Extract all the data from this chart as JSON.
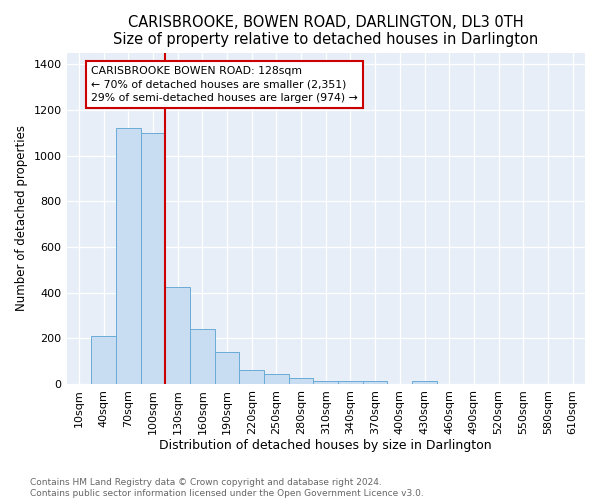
{
  "title": "CARISBROOKE, BOWEN ROAD, DARLINGTON, DL3 0TH",
  "subtitle": "Size of property relative to detached houses in Darlington",
  "xlabel": "Distribution of detached houses by size in Darlington",
  "ylabel": "Number of detached properties",
  "footnote1": "Contains HM Land Registry data © Crown copyright and database right 2024.",
  "footnote2": "Contains public sector information licensed under the Open Government Licence v3.0.",
  "bar_labels": [
    "10sqm",
    "40sqm",
    "70sqm",
    "100sqm",
    "130sqm",
    "160sqm",
    "190sqm",
    "220sqm",
    "250sqm",
    "280sqm",
    "310sqm",
    "340sqm",
    "370sqm",
    "400sqm",
    "430sqm",
    "460sqm",
    "490sqm",
    "520sqm",
    "550sqm",
    "580sqm",
    "610sqm"
  ],
  "bar_values": [
    0,
    210,
    1120,
    1100,
    425,
    240,
    140,
    60,
    45,
    25,
    15,
    15,
    15,
    0,
    15,
    0,
    0,
    0,
    0,
    0,
    0
  ],
  "bar_color": "#c9ddf2",
  "bar_edge_color": "#6aabd6",
  "vline_color": "#cc0000",
  "annotation_text": "CARISBROOKE BOWEN ROAD: 128sqm\n← 70% of detached houses are smaller (2,351)\n29% of semi-detached houses are larger (974) →",
  "annotation_box_color": "white",
  "annotation_box_edge": "#cc0000",
  "ylim": [
    0,
    1450
  ],
  "yticks": [
    0,
    200,
    400,
    600,
    800,
    1000,
    1200,
    1400
  ],
  "background_color": "#e8eef8",
  "grid_color": "white",
  "title_fontsize": 10.5,
  "subtitle_fontsize": 9.5,
  "xlabel_fontsize": 9,
  "ylabel_fontsize": 8.5,
  "tick_fontsize": 8,
  "annot_fontsize": 7.8,
  "footnote_fontsize": 6.5
}
